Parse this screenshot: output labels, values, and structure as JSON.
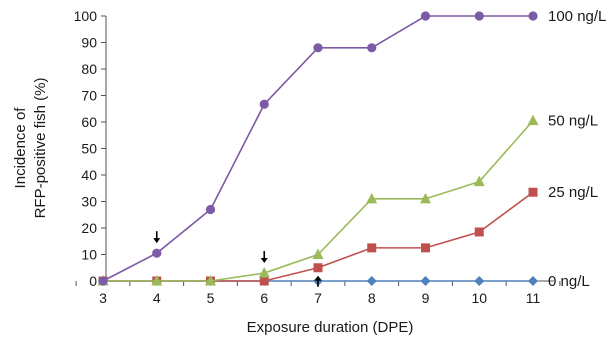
{
  "chart_data": {
    "type": "line",
    "title": "",
    "xlabel": "Exposure duration (DPE)",
    "ylabel_lines": [
      "Incidence of",
      "RFP-positive fish (%)"
    ],
    "x": [
      3,
      4,
      5,
      6,
      7,
      8,
      9,
      10,
      11
    ],
    "xlim": [
      3,
      11
    ],
    "ylim": [
      0,
      100
    ],
    "yticks": [
      0,
      10,
      20,
      30,
      40,
      50,
      60,
      70,
      80,
      90,
      100
    ],
    "grid": false,
    "series": [
      {
        "name": "100 ng/L",
        "color": "#7b5aa6",
        "marker": "circle",
        "values": [
          0,
          10.5,
          27,
          66.7,
          88,
          88,
          100,
          100,
          100
        ]
      },
      {
        "name": "50 ng/L",
        "color": "#9bbb59",
        "marker": "triangle",
        "values": [
          0,
          0,
          0,
          3,
          10,
          31,
          31,
          37.5,
          60.5
        ]
      },
      {
        "name": "25 ng/L",
        "color": "#c0504d",
        "marker": "square",
        "values": [
          0,
          0,
          0,
          0,
          5,
          12.5,
          12.5,
          18.5,
          33.5
        ]
      },
      {
        "name": "0 ng/L",
        "color": "#4f81bd",
        "marker": "diamond",
        "values": [
          0,
          0,
          0,
          0,
          0,
          0,
          0,
          0,
          0
        ]
      }
    ],
    "annotations": [
      {
        "type": "arrow-down",
        "x": 4,
        "y": 10.5
      },
      {
        "type": "arrow-down",
        "x": 6,
        "y": 3
      },
      {
        "type": "arrow-up",
        "x": 7,
        "y": 5
      }
    ]
  }
}
